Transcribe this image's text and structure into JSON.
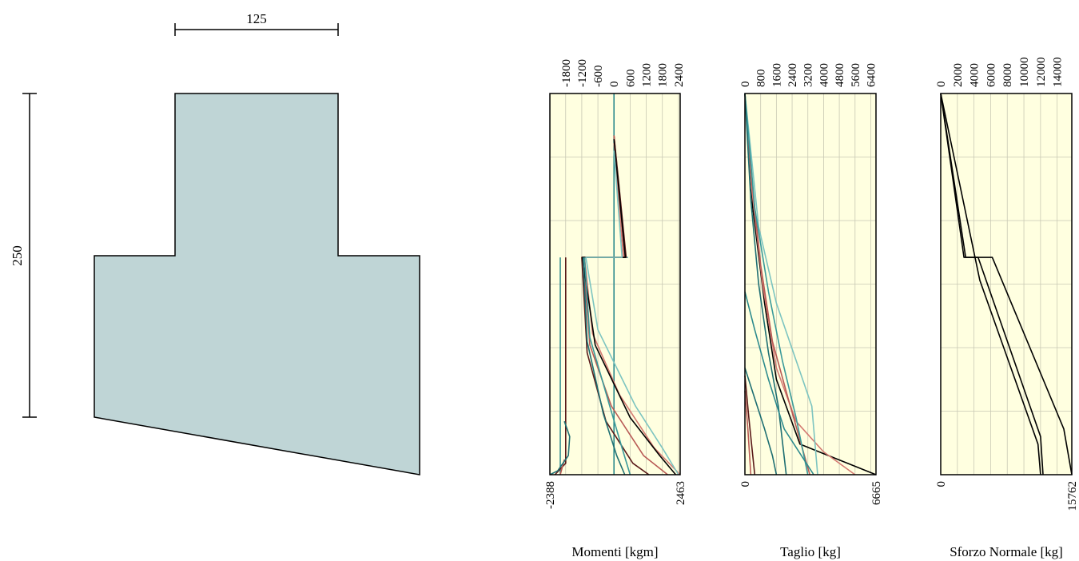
{
  "section": {
    "width_label": "125",
    "height_label": "250",
    "fill": "#bfd5d6",
    "stroke": "#000000"
  },
  "colors": {
    "plot_bg": "#ffffe0",
    "grid": "#c9c9b4",
    "frame": "#000000",
    "series_palette": [
      "#5a1a1a",
      "#b85a55",
      "#d47a72",
      "#1f6f73",
      "#2e8b8e",
      "#7cc4c0",
      "#3a9a9a",
      "#000000"
    ]
  },
  "chart_data": [
    {
      "type": "line",
      "orientation": "profile-vertical",
      "title": "",
      "xlabel": "Momenti [kgm]",
      "ylabel": "",
      "xlim": [
        -2388,
        2463
      ],
      "x_ticks": [
        "-1800",
        "-1200",
        "-600",
        "0",
        "600",
        "1200",
        "1800",
        "2400"
      ],
      "x_tick_values": [
        -1800,
        -1200,
        -600,
        0,
        600,
        1200,
        1800,
        2400
      ],
      "min_label": "-2388",
      "max_label": "2463",
      "y_range": [
        0,
        1
      ],
      "grid": true,
      "series": [
        {
          "color": "#2e8b8e",
          "points": [
            [
              0,
              0
            ],
            [
              0,
              0.43
            ],
            [
              500,
              0.43
            ],
            [
              0,
              0.43
            ],
            [
              0,
              1
            ]
          ]
        },
        {
          "color": "#2e8b8e",
          "points": [
            [
              -2000,
              0.43
            ],
            [
              -2000,
              1
            ]
          ]
        },
        {
          "color": "#5a1a1a",
          "points": [
            [
              0,
              0.11
            ],
            [
              450,
              0.43
            ],
            [
              -1200,
              0.43
            ],
            [
              -1000,
              0.68
            ],
            [
              -300,
              0.86
            ],
            [
              700,
              0.97
            ],
            [
              1300,
              1
            ]
          ]
        },
        {
          "color": "#b85a55",
          "points": [
            [
              0,
              0.11
            ],
            [
              400,
              0.43
            ],
            [
              -1150,
              0.43
            ],
            [
              -900,
              0.66
            ],
            [
              -100,
              0.82
            ],
            [
              1100,
              0.95
            ],
            [
              2000,
              1
            ]
          ]
        },
        {
          "color": "#d47a72",
          "points": [
            [
              0,
              0.13
            ],
            [
              350,
              0.43
            ],
            [
              -1100,
              0.43
            ],
            [
              -800,
              0.63
            ],
            [
              200,
              0.79
            ],
            [
              1500,
              0.93
            ],
            [
              2463,
              1
            ]
          ]
        },
        {
          "color": "#000000",
          "points": [
            [
              0,
              0.12
            ],
            [
              420,
              0.43
            ],
            [
              -1180,
              0.43
            ],
            [
              -700,
              0.66
            ],
            [
              600,
              0.85
            ],
            [
              1700,
              0.95
            ],
            [
              2300,
              1
            ]
          ]
        },
        {
          "color": "#7cc4c0",
          "points": [
            [
              0,
              0.15
            ],
            [
              300,
              0.43
            ],
            [
              -1050,
              0.43
            ],
            [
              -600,
              0.62
            ],
            [
              800,
              0.82
            ],
            [
              1800,
              0.93
            ],
            [
              2400,
              1
            ]
          ]
        },
        {
          "color": "#1f6f73",
          "points": [
            [
              -1150,
              0.43
            ],
            [
              -1000,
              0.65
            ],
            [
              -400,
              0.84
            ],
            [
              100,
              0.95
            ],
            [
              400,
              1
            ]
          ]
        },
        {
          "color": "#3a9a9a",
          "points": [
            [
              -1100,
              0.43
            ],
            [
              -900,
              0.64
            ],
            [
              -200,
              0.81
            ],
            [
              300,
              0.93
            ],
            [
              600,
              1
            ]
          ]
        },
        {
          "color": "#5a1a1a",
          "points": [
            [
              -1800,
              0.43
            ],
            [
              -1800,
              0.97
            ],
            [
              -2200,
              1
            ]
          ]
        },
        {
          "color": "#b85a55",
          "points": [
            [
              -1850,
              0.96
            ],
            [
              -2000,
              1
            ]
          ]
        },
        {
          "color": "#1f6f73",
          "points": [
            [
              -1850,
              0.86
            ],
            [
              -1650,
              0.9
            ],
            [
              -1700,
              0.95
            ],
            [
              -2100,
              0.99
            ],
            [
              -2388,
              1
            ]
          ]
        }
      ]
    },
    {
      "type": "line",
      "orientation": "profile-vertical",
      "title": "",
      "xlabel": "Taglio [kg]",
      "ylabel": "",
      "xlim": [
        0,
        6665
      ],
      "x_ticks": [
        "0",
        "800",
        "1600",
        "2400",
        "3200",
        "4000",
        "4800",
        "5600",
        "6400"
      ],
      "x_tick_values": [
        0,
        800,
        1600,
        2400,
        3200,
        4000,
        4800,
        5600,
        6400
      ],
      "min_label": "0",
      "max_label": "6665",
      "y_range": [
        0,
        1
      ],
      "grid": true,
      "series": [
        {
          "color": "#000000",
          "points": [
            [
              0,
              0
            ],
            [
              400,
              0.3
            ],
            [
              1000,
              0.55
            ],
            [
              1600,
              0.75
            ],
            [
              2800,
              0.92
            ],
            [
              6665,
              1
            ]
          ]
        },
        {
          "color": "#d47a72",
          "points": [
            [
              0,
              0
            ],
            [
              350,
              0.25
            ],
            [
              900,
              0.5
            ],
            [
              1600,
              0.72
            ],
            [
              2600,
              0.86
            ],
            [
              4000,
              0.94
            ],
            [
              5600,
              1
            ]
          ]
        },
        {
          "color": "#b85a55",
          "points": [
            [
              0,
              0
            ],
            [
              300,
              0.2
            ],
            [
              800,
              0.45
            ],
            [
              1400,
              0.65
            ],
            [
              2200,
              0.8
            ],
            [
              3300,
              1
            ]
          ]
        },
        {
          "color": "#7cc4c0",
          "points": [
            [
              0,
              0
            ],
            [
              700,
              0.35
            ],
            [
              1600,
              0.55
            ],
            [
              2600,
              0.7
            ],
            [
              3400,
              0.82
            ],
            [
              3700,
              1
            ]
          ]
        },
        {
          "color": "#3a9a9a",
          "points": [
            [
              0,
              0
            ],
            [
              500,
              0.3
            ],
            [
              1200,
              0.52
            ],
            [
              1900,
              0.7
            ],
            [
              2600,
              0.85
            ],
            [
              3200,
              1
            ]
          ]
        },
        {
          "color": "#1f6f73",
          "points": [
            [
              0,
              0
            ],
            [
              300,
              0.28
            ],
            [
              700,
              0.5
            ],
            [
              1200,
              0.68
            ],
            [
              1700,
              0.82
            ],
            [
              2100,
              1
            ]
          ]
        },
        {
          "color": "#2e8b8e",
          "points": [
            [
              0,
              0.52
            ],
            [
              500,
              0.62
            ],
            [
              1200,
              0.75
            ],
            [
              2000,
              0.88
            ],
            [
              3500,
              1
            ]
          ]
        },
        {
          "color": "#1f6f73",
          "points": [
            [
              0,
              0.72
            ],
            [
              500,
              0.8
            ],
            [
              1000,
              0.88
            ],
            [
              1400,
              0.95
            ],
            [
              1600,
              1
            ]
          ]
        },
        {
          "color": "#5a1a1a",
          "points": [
            [
              0,
              0.74
            ],
            [
              200,
              0.85
            ],
            [
              400,
              0.95
            ],
            [
              500,
              1
            ]
          ]
        },
        {
          "color": "#b85a55",
          "points": [
            [
              0,
              0.78
            ],
            [
              150,
              0.88
            ],
            [
              300,
              1
            ]
          ]
        }
      ]
    },
    {
      "type": "line",
      "orientation": "profile-vertical",
      "title": "",
      "xlabel": "Sforzo Normale [kg]",
      "ylabel": "",
      "xlim": [
        0,
        15762
      ],
      "x_ticks": [
        "0",
        "2000",
        "4000",
        "6000",
        "8000",
        "10000",
        "12000",
        "14000"
      ],
      "x_tick_values": [
        0,
        2000,
        4000,
        6000,
        8000,
        10000,
        12000,
        14000
      ],
      "min_label": "0",
      "max_label": "15762",
      "y_range": [
        0,
        1
      ],
      "grid": true,
      "series": [
        {
          "color": "#000000",
          "points": [
            [
              0,
              0
            ],
            [
              3000,
              0.43
            ],
            [
              6200,
              0.43
            ],
            [
              14800,
              0.88
            ],
            [
              15762,
              1
            ]
          ]
        },
        {
          "color": "#000000",
          "points": [
            [
              0,
              0
            ],
            [
              2800,
              0.43
            ],
            [
              4500,
              0.43
            ],
            [
              12000,
              0.9
            ],
            [
              12300,
              1
            ]
          ]
        },
        {
          "color": "#000000",
          "points": [
            [
              0,
              0
            ],
            [
              4700,
              0.49
            ],
            [
              11700,
              0.92
            ],
            [
              12000,
              1
            ]
          ]
        }
      ]
    }
  ]
}
